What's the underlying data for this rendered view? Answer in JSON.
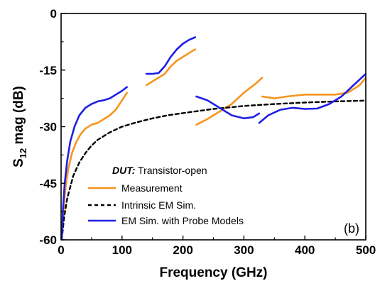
{
  "chart_data": {
    "type": "line",
    "xlabel": "Frequency (GHz)",
    "ylabel_main": "S",
    "ylabel_sub": "12",
    "ylabel_rest": " mag (dB)",
    "xlim": [
      0,
      500
    ],
    "ylim": [
      -60,
      0
    ],
    "xticks": [
      0,
      100,
      200,
      300,
      400,
      500
    ],
    "yticks": [
      0,
      -15,
      -30,
      -45,
      -60
    ],
    "grid": false,
    "annotation": {
      "bold_italic": "DUT:",
      "text": " Transistor-open"
    },
    "panel_label": "(b)",
    "legend_position": "bottom-left",
    "series": [
      {
        "name": "Measurement",
        "color": "#f7941d",
        "style": "solid",
        "segments": [
          [
            [
              1,
              -60
            ],
            [
              3,
              -55
            ],
            [
              5,
              -50
            ],
            [
              8,
              -45
            ],
            [
              12,
              -41
            ],
            [
              18,
              -37
            ],
            [
              25,
              -34
            ],
            [
              32,
              -32
            ],
            [
              40,
              -30.5
            ],
            [
              50,
              -29.5
            ],
            [
              60,
              -29
            ],
            [
              70,
              -28
            ],
            [
              80,
              -27
            ],
            [
              90,
              -25.5
            ],
            [
              100,
              -23
            ],
            [
              108,
              -21
            ]
          ],
          [
            [
              140,
              -19
            ],
            [
              150,
              -18
            ],
            [
              160,
              -17
            ],
            [
              170,
              -16
            ],
            [
              180,
              -14
            ],
            [
              190,
              -12.5
            ],
            [
              200,
              -11.5
            ],
            [
              210,
              -10.5
            ],
            [
              220,
              -9.5
            ]
          ],
          [
            [
              222,
              -29.5
            ],
            [
              240,
              -28
            ],
            [
              260,
              -26
            ],
            [
              280,
              -24
            ],
            [
              300,
              -21
            ],
            [
              320,
              -18.5
            ],
            [
              330,
              -17
            ]
          ],
          [
            [
              330,
              -22
            ],
            [
              350,
              -22.5
            ],
            [
              370,
              -22
            ],
            [
              400,
              -21.5
            ],
            [
              420,
              -21.5
            ],
            [
              450,
              -21.5
            ],
            [
              470,
              -21
            ],
            [
              490,
              -19
            ],
            [
              500,
              -17
            ]
          ]
        ]
      },
      {
        "name": "Intrinsic EM Sim.",
        "color": "#000000",
        "style": "dashed",
        "segments": [
          [
            [
              1,
              -60
            ],
            [
              5,
              -54
            ],
            [
              10,
              -49
            ],
            [
              20,
              -43
            ],
            [
              30,
              -39.5
            ],
            [
              40,
              -37
            ],
            [
              50,
              -35
            ],
            [
              60,
              -33.5
            ],
            [
              80,
              -31.5
            ],
            [
              100,
              -30
            ],
            [
              125,
              -28.8
            ],
            [
              150,
              -27.8
            ],
            [
              175,
              -27
            ],
            [
              200,
              -26.4
            ],
            [
              250,
              -25.3
            ],
            [
              300,
              -24.5
            ],
            [
              350,
              -24
            ],
            [
              400,
              -23.6
            ],
            [
              450,
              -23.3
            ],
            [
              500,
              -23.1
            ]
          ]
        ]
      },
      {
        "name": "EM Sim. with Probe Models",
        "color": "#1f1fe6",
        "style": "solid",
        "segments": [
          [
            [
              1,
              -60
            ],
            [
              3,
              -52
            ],
            [
              6,
              -45
            ],
            [
              10,
              -39
            ],
            [
              15,
              -34
            ],
            [
              22,
              -30
            ],
            [
              30,
              -27
            ],
            [
              40,
              -25
            ],
            [
              50,
              -24
            ],
            [
              60,
              -23.3
            ],
            [
              70,
              -23
            ],
            [
              80,
              -22.5
            ],
            [
              90,
              -21.5
            ],
            [
              100,
              -20.5
            ],
            [
              108,
              -19.5
            ]
          ],
          [
            [
              140,
              -16
            ],
            [
              150,
              -16
            ],
            [
              160,
              -15.8
            ],
            [
              170,
              -14
            ],
            [
              180,
              -11.5
            ],
            [
              190,
              -9.5
            ],
            [
              200,
              -8
            ],
            [
              210,
              -7
            ],
            [
              220,
              -6.3
            ]
          ],
          [
            [
              222,
              -22
            ],
            [
              240,
              -23
            ],
            [
              260,
              -25
            ],
            [
              280,
              -27
            ],
            [
              300,
              -27.8
            ],
            [
              315,
              -27.5
            ],
            [
              325,
              -26.5
            ]
          ],
          [
            [
              325,
              -29
            ],
            [
              340,
              -27
            ],
            [
              360,
              -25.5
            ],
            [
              380,
              -25
            ],
            [
              400,
              -25.3
            ],
            [
              420,
              -25.2
            ],
            [
              440,
              -24
            ],
            [
              460,
              -22
            ],
            [
              480,
              -19
            ],
            [
              500,
              -16
            ]
          ]
        ]
      }
    ]
  }
}
